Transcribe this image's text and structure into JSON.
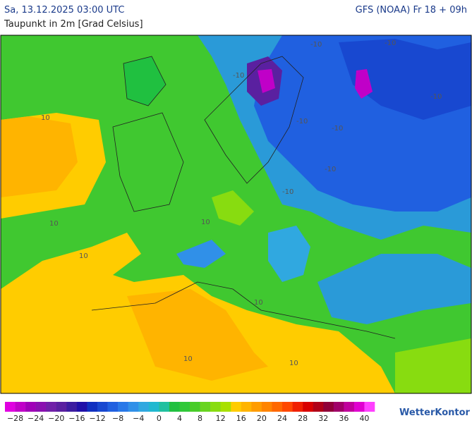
{
  "header": {
    "time": "Sa, 13.12.2025 03:00 UTC",
    "model": "GFS (NOAA) Fr 18 + 09h",
    "subtitle": "Taupunkt in 2m [Grad Celsius]"
  },
  "map": {
    "contour_labels": [
      "-10",
      "-10",
      "-10",
      "-10",
      "-10",
      "-10",
      "-10",
      "-10",
      "10",
      "10",
      "10",
      "10",
      "10",
      "10",
      "10"
    ]
  },
  "legend": {
    "colors": [
      "#e000e0",
      "#c000c8",
      "#a000b8",
      "#8a10b0",
      "#7020a8",
      "#5a20a0",
      "#3c1ca0",
      "#2010a8",
      "#1030c0",
      "#1848d0",
      "#2060e0",
      "#2878e8",
      "#3090e8",
      "#30a8e0",
      "#20b8d0",
      "#20c0a0",
      "#20c040",
      "#30c838",
      "#48cc28",
      "#68d420",
      "#88dc10",
      "#a8e000",
      "#ffcc00",
      "#ffb400",
      "#ff9c00",
      "#ff8400",
      "#ff6800",
      "#ff4800",
      "#f02000",
      "#d80000",
      "#b00018",
      "#900038",
      "#a00068",
      "#c0009c",
      "#e000d0",
      "#ff40ff"
    ],
    "labels": [
      "−28",
      "−24",
      "−20",
      "−16",
      "−12",
      "−8",
      "−4",
      "0",
      "4",
      "8",
      "12",
      "16",
      "20",
      "24",
      "28",
      "32",
      "36",
      "40"
    ]
  },
  "brand": "WetterKontor"
}
